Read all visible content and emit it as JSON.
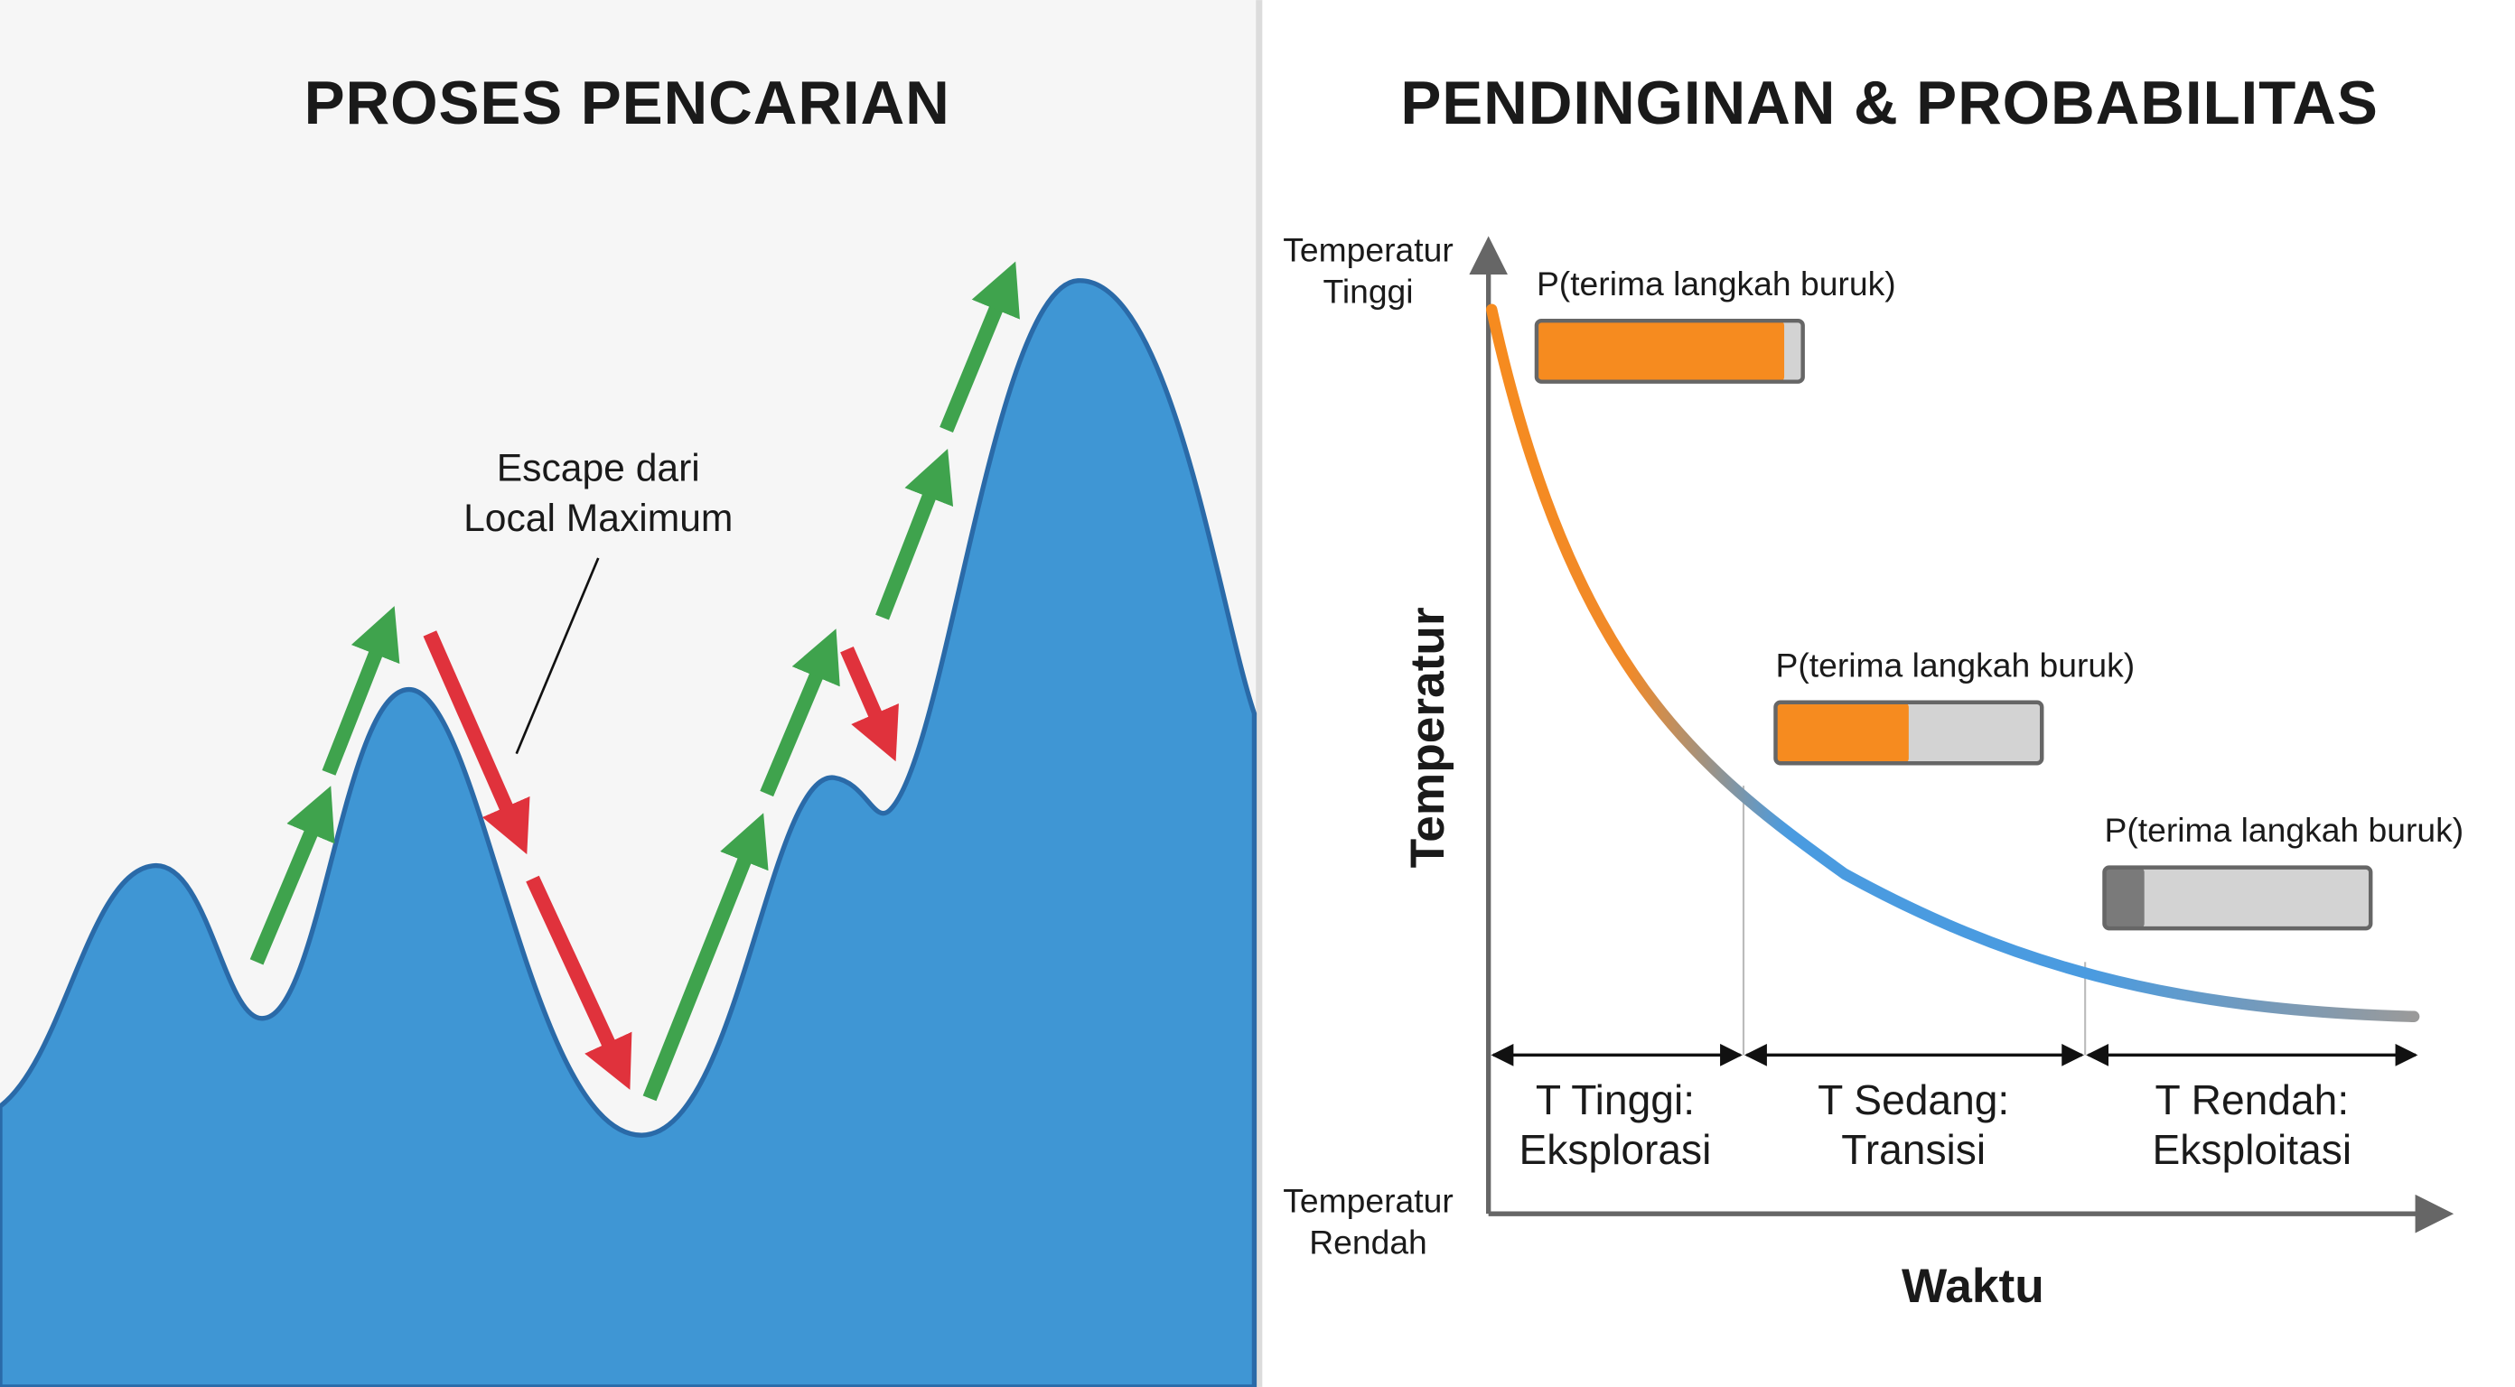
{
  "left": {
    "title": "PROSES PENCARIAN",
    "annotation": [
      "Escape dari",
      "Local Maximum"
    ]
  },
  "right": {
    "title": "PENDINGINAN & PROBABILITAS",
    "y_axis_top": [
      "Temperatur",
      "Tinggi"
    ],
    "y_axis_bottom": [
      "Temperatur",
      "Rendah"
    ],
    "y_axis_label": "Temperatur",
    "x_axis_label": "Waktu",
    "probability_bars": [
      {
        "label": "P(terima langkah buruk)",
        "value": 0.93
      },
      {
        "label": "P(terima langkah buruk)",
        "value": 0.5
      },
      {
        "label": "P(terima langkah buruk)",
        "value": 0.15
      }
    ],
    "phases": [
      {
        "lines": [
          "T Tinggi:",
          "Eksplorasi"
        ]
      },
      {
        "lines": [
          "T Sedang:",
          "Transisi"
        ]
      },
      {
        "lines": [
          "T Rendah:",
          "Eksploitasi"
        ]
      }
    ]
  }
}
